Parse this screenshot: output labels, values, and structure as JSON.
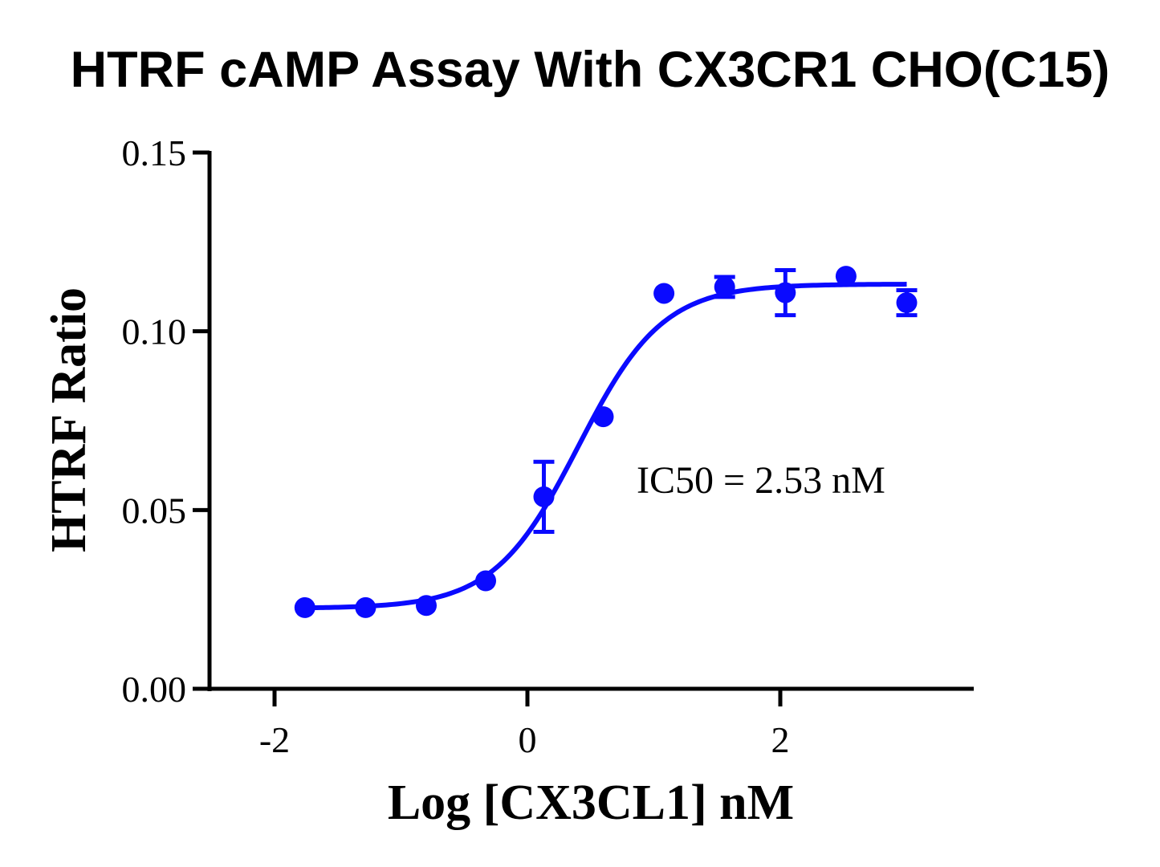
{
  "chart_data": {
    "type": "scatter",
    "title": "HTRF cAMP Assay With CX3CR1 CHO(C15)",
    "xlabel": "Log [CX3CL1] nM",
    "ylabel": "HTRF Ratio",
    "xlim": [
      -2.5,
      3.5
    ],
    "ylim": [
      0.0,
      0.15
    ],
    "xticks": [
      -2,
      0,
      2
    ],
    "xtick_labels": [
      "-2",
      "0",
      "2"
    ],
    "yticks": [
      0.0,
      0.05,
      0.1,
      0.15
    ],
    "ytick_labels": [
      "0.00",
      "0.05",
      "0.10",
      "0.15"
    ],
    "grid": false,
    "legend": "none",
    "annotation": "IC50 = 2.53 nM",
    "series": [
      {
        "color": "#0a0aff",
        "x": [
          -1.76,
          -1.28,
          -0.8,
          -0.33,
          0.13,
          0.6,
          1.08,
          1.56,
          2.04,
          2.52,
          3.0
        ],
        "y": [
          0.0227,
          0.0227,
          0.0233,
          0.0302,
          0.0537,
          0.0761,
          0.1106,
          0.1124,
          0.1108,
          0.1154,
          0.108
        ],
        "error": [
          0.0,
          0.0,
          0.0,
          0.0,
          0.0098,
          0.0,
          0.0,
          0.0028,
          0.0063,
          0.0,
          0.0035
        ]
      }
    ],
    "fit": {
      "model": "four-parameter logistic",
      "bottom": 0.0225,
      "top": 0.1132,
      "log_ec50": 0.403,
      "hill_slope": 1.3,
      "x_range": [
        -1.76,
        3.0
      ]
    }
  }
}
